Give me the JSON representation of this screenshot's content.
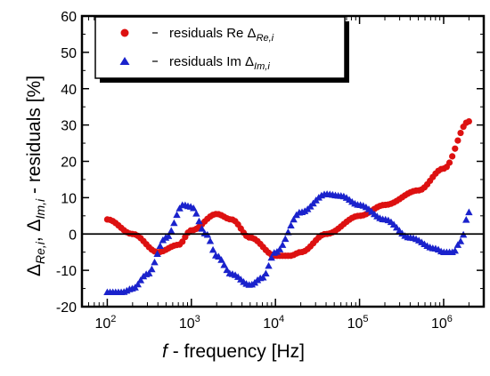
{
  "chart_data": {
    "type": "scatter",
    "xscale": "log",
    "xlim": [
      50,
      3000000
    ],
    "ylim": [
      -20,
      60
    ],
    "yticks": [
      -20,
      -10,
      0,
      10,
      20,
      30,
      40,
      50,
      60
    ],
    "xticks": [
      {
        "value": 100,
        "base": "10",
        "exp": "2"
      },
      {
        "value": 1000,
        "base": "10",
        "exp": "3"
      },
      {
        "value": 10000,
        "base": "10",
        "exp": "4"
      },
      {
        "value": 100000,
        "base": "10",
        "exp": "5"
      },
      {
        "value": 1000000,
        "base": "10",
        "exp": "6"
      }
    ],
    "xlabel": {
      "italic": "f",
      "text": " - frequency [Hz]"
    },
    "ylabel": {
      "delta": "Δ",
      "sub_re": "Re,i",
      "sep": ", ",
      "sub_im": "Im,i",
      "text": " - residuals [%]"
    },
    "reference_line_y": 0,
    "legend_placement": "top-left",
    "series": [
      {
        "name": "residuals Re Δ",
        "name_sub": "Re,i",
        "marker": "circle",
        "color": "#dd1111",
        "x": [
          100,
          200,
          400,
          700,
          1000,
          2000,
          3000,
          5000,
          10000,
          15000,
          20000,
          40000,
          100000,
          200000,
          500000,
          1000000,
          2000000
        ],
        "y": [
          4,
          0,
          -5,
          -3,
          1,
          5.5,
          4,
          -1,
          -6,
          -6,
          -5,
          0,
          5,
          8,
          12,
          18,
          31
        ]
      },
      {
        "name": "residuals Im Δ",
        "name_sub": "Im,i",
        "marker": "triangle",
        "color": "#1a22cc",
        "x": [
          100,
          150,
          200,
          300,
          500,
          800,
          1000,
          1500,
          2000,
          3000,
          5000,
          7000,
          10000,
          20000,
          40000,
          60000,
          100000,
          200000,
          400000,
          800000,
          1000000,
          1300000,
          1600000,
          2000000
        ],
        "y": [
          -16,
          -16,
          -15,
          -11,
          -1,
          8,
          7.5,
          0,
          -6,
          -11,
          -14,
          -12,
          -5,
          6,
          11,
          10.5,
          8,
          4,
          -1,
          -4,
          -5,
          -5,
          -2,
          6
        ]
      }
    ]
  }
}
